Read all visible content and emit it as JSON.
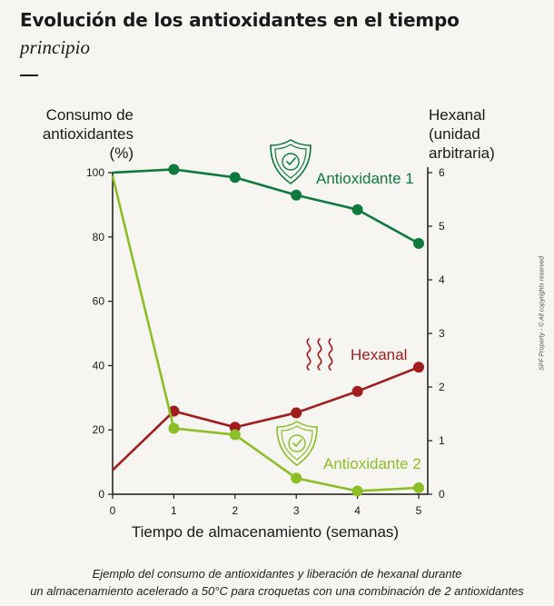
{
  "header": {
    "title": "Evolución de los antioxidantes en el tiempo",
    "subtitle": "principio"
  },
  "chart_data": {
    "type": "line",
    "xlabel": "Tiempo de almacenamiento (semanas)",
    "ylabel_left": [
      "Consumo de",
      "antioxidantes",
      "(%)"
    ],
    "ylabel_right": [
      "Hexanal",
      "(unidad",
      "arbitraria)"
    ],
    "x": [
      0,
      1,
      2,
      3,
      4,
      5
    ],
    "xticks": [
      "0",
      "1",
      "2",
      "3",
      "4",
      "5"
    ],
    "ylim_left": [
      0,
      100
    ],
    "yticks_left": [
      "0",
      "20",
      "40",
      "60",
      "80",
      "100"
    ],
    "ylim_right": [
      0,
      6
    ],
    "yticks_right": [
      "0",
      "1",
      "2",
      "3",
      "4",
      "5",
      "6"
    ],
    "grid": false,
    "series": [
      {
        "name": "Antioxidante 1",
        "axis": "left",
        "color": "#0e7a3e",
        "icon": "shield-check-icon",
        "values": [
          100,
          101,
          98.5,
          93,
          88.5,
          78
        ]
      },
      {
        "name": "Hexanal",
        "axis": "right",
        "color": "#a11d1d",
        "icon": "steam-icon",
        "values": [
          0.45,
          1.55,
          1.25,
          1.52,
          1.92,
          2.37
        ]
      },
      {
        "name": "Antioxidante 2",
        "axis": "left",
        "color": "#8cbf26",
        "icon": "shield-check-icon",
        "values": [
          99,
          20.5,
          18.5,
          5,
          1,
          2
        ]
      }
    ]
  },
  "caption": [
    "Ejemplo del consumo de antioxidantes y liberación de hexanal durante",
    "un almacenamiento acelerado a 50°C para croquetas con una combinación de 2 antioxidantes"
  ],
  "copyright": "SPF Property - © All copyrights reserved"
}
